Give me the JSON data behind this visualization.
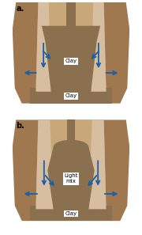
{
  "bg_color": "#a07850",
  "hole_color": "#c8a878",
  "rootball_color": "#8b7050",
  "light_strip_color": "#d8bea0",
  "clay_bar_color": "#8b7050",
  "clay_bar_light": "#c8a878",
  "label_clay_center": "Clay",
  "label_light": "Light\nmix",
  "label_clay_bottom": "Clay",
  "arrow_color": "#1a5fa8",
  "label_a": "a.",
  "label_b": "b.",
  "fig_width": 1.8,
  "fig_height": 2.97,
  "dpi": 100
}
